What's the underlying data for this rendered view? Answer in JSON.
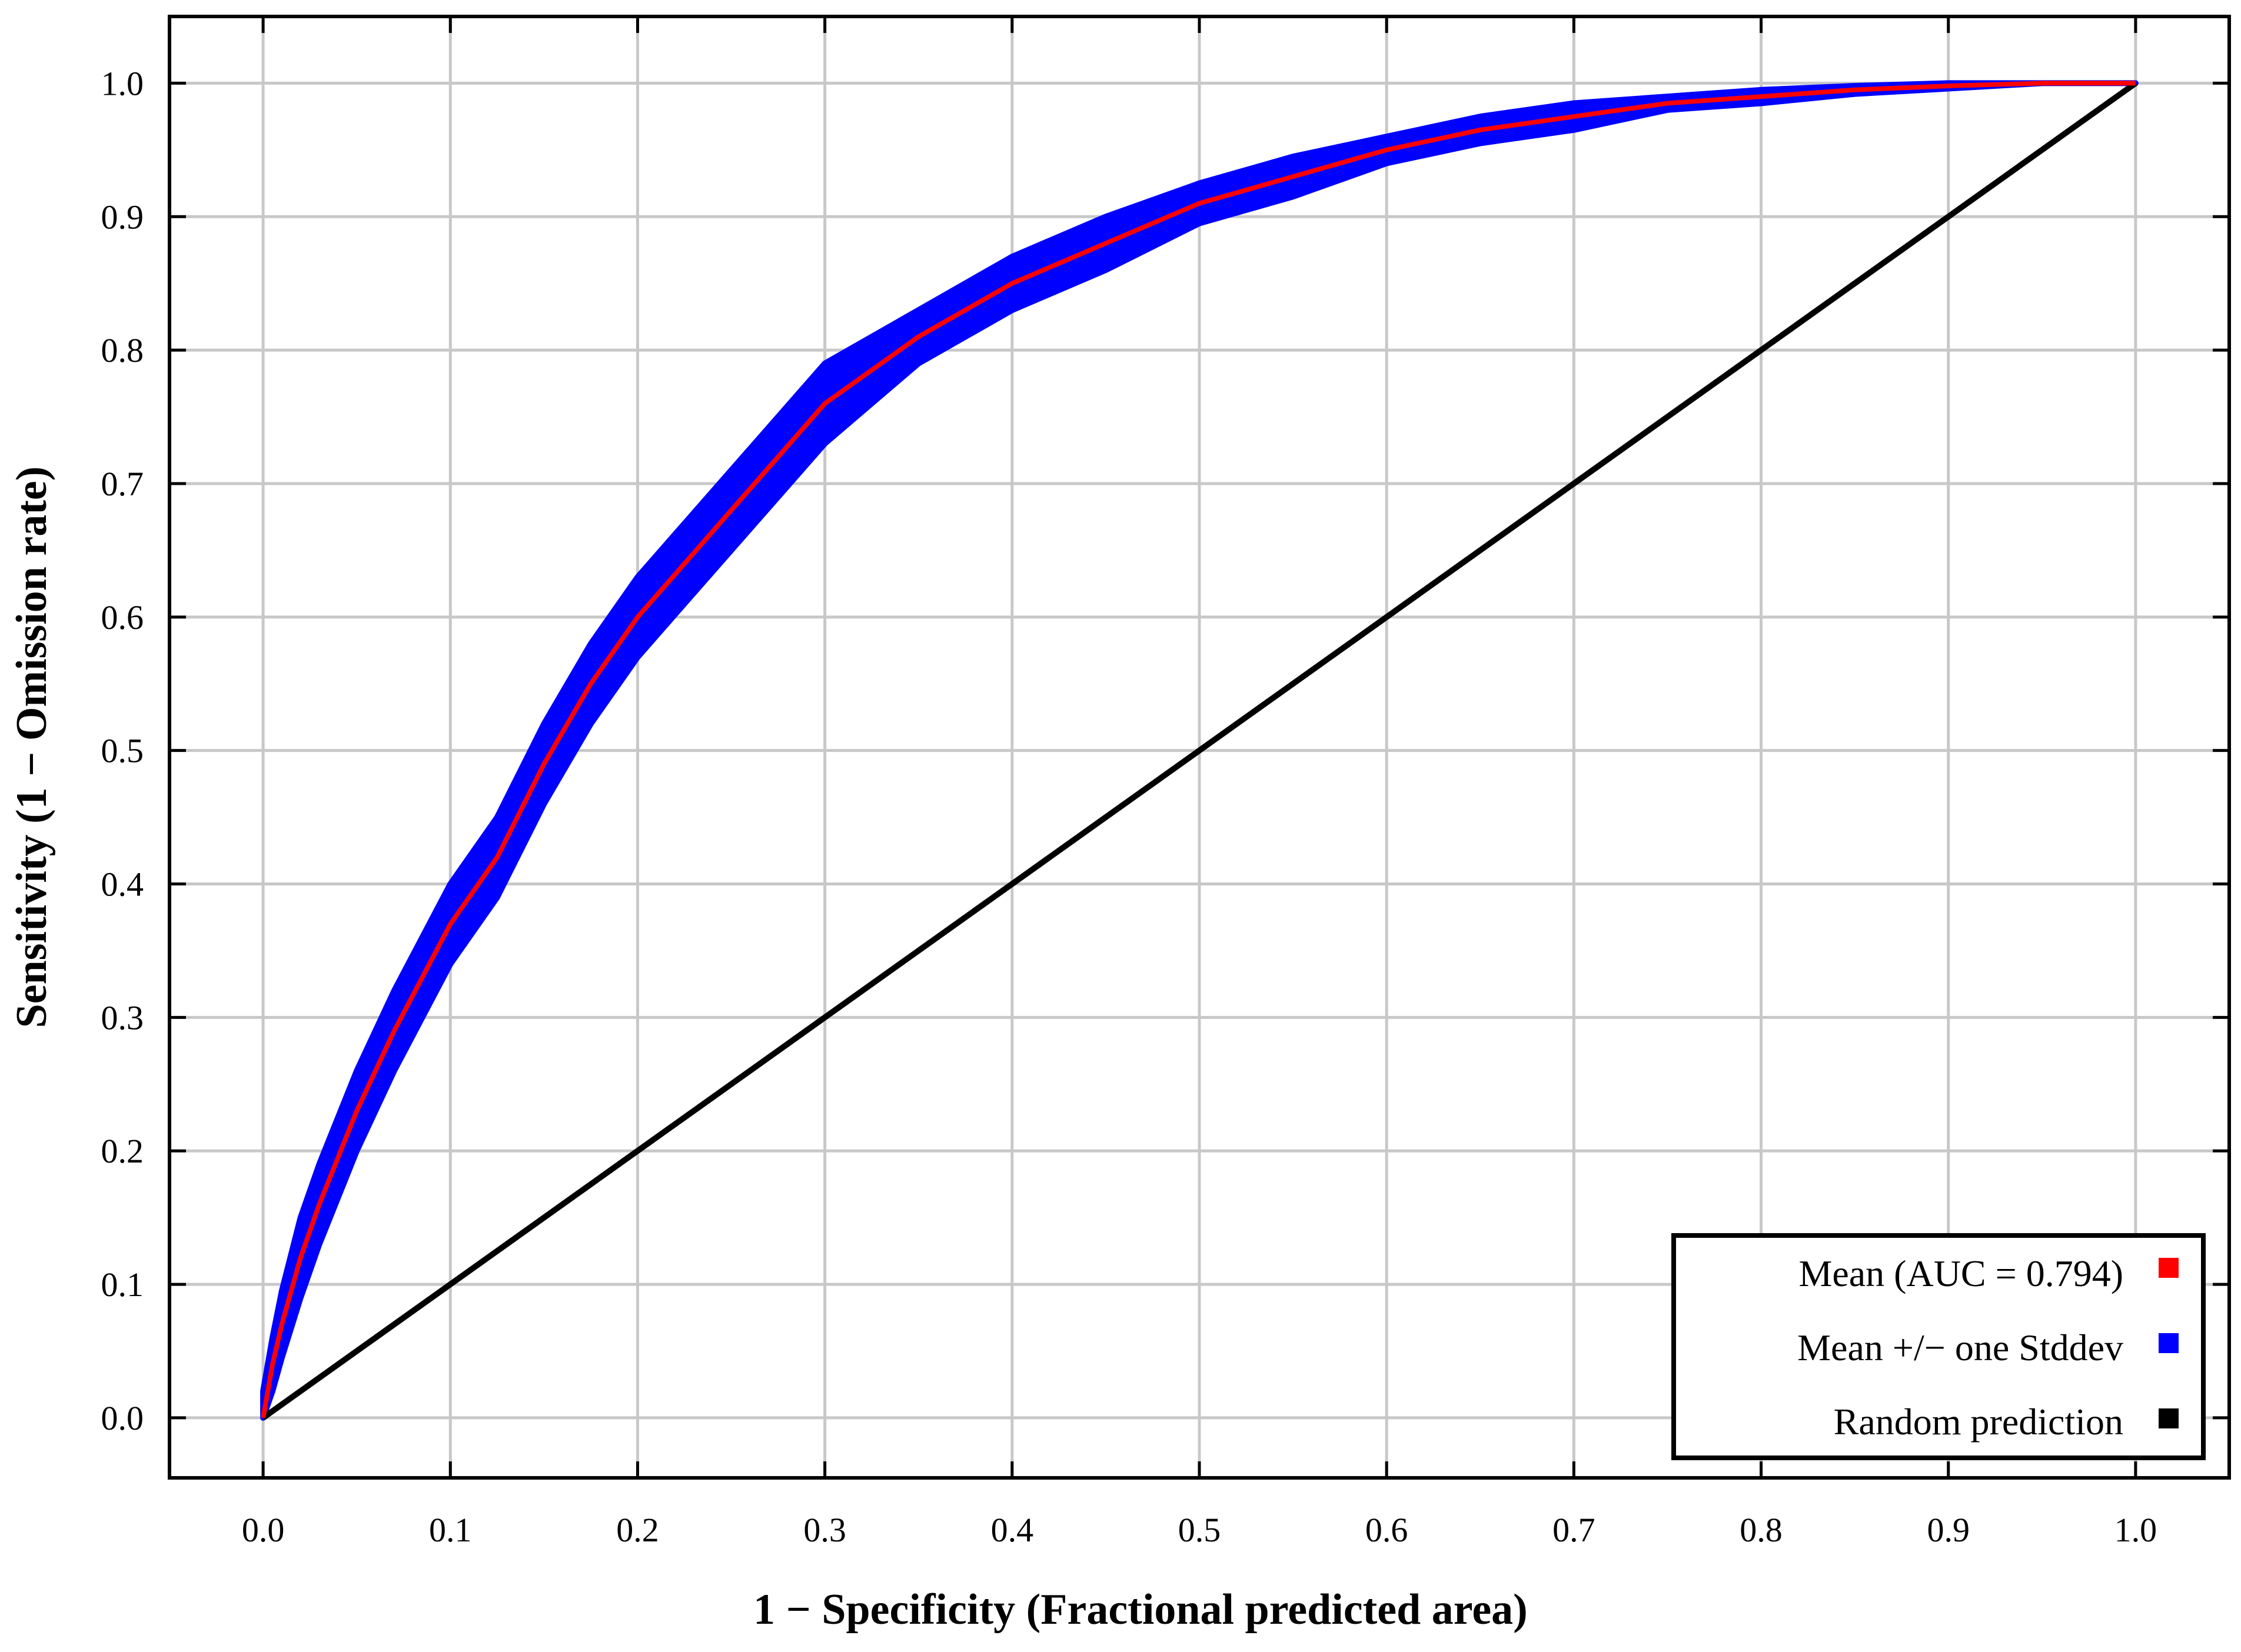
{
  "chart_data": {
    "type": "line",
    "title": "",
    "xlabel": "1 − Specificity (Fractional predicted area)",
    "ylabel": "Sensitivity (1 − Omission rate)",
    "xlim": [
      -0.05,
      1.05
    ],
    "ylim": [
      -0.045,
      1.05
    ],
    "grid": true,
    "x_ticks": [
      "0.0",
      "0.1",
      "0.2",
      "0.3",
      "0.4",
      "0.5",
      "0.6",
      "0.7",
      "0.8",
      "0.9",
      "1.0"
    ],
    "y_ticks": [
      "0.0",
      "0.1",
      "0.2",
      "0.3",
      "0.4",
      "0.5",
      "0.6",
      "0.7",
      "0.8",
      "0.9",
      "1.0"
    ],
    "legend_position": "bottom-right",
    "series": [
      {
        "name": "Mean (AUC = 0.794)",
        "color": "#ff0000",
        "x": [
          0.0,
          0.005,
          0.01,
          0.02,
          0.03,
          0.05,
          0.07,
          0.1,
          0.125,
          0.15,
          0.175,
          0.2,
          0.225,
          0.25,
          0.275,
          0.3,
          0.35,
          0.4,
          0.45,
          0.5,
          0.55,
          0.6,
          0.65,
          0.7,
          0.75,
          0.8,
          0.85,
          0.9,
          0.95,
          1.0
        ],
        "y": [
          0.0,
          0.04,
          0.07,
          0.12,
          0.16,
          0.23,
          0.29,
          0.37,
          0.42,
          0.49,
          0.55,
          0.6,
          0.64,
          0.68,
          0.72,
          0.76,
          0.81,
          0.85,
          0.88,
          0.91,
          0.93,
          0.95,
          0.965,
          0.975,
          0.985,
          0.99,
          0.995,
          0.998,
          1.0,
          1.0
        ]
      },
      {
        "name": "Mean +/− one Stddev",
        "color": "#0000ff",
        "x": [
          0.0,
          0.005,
          0.01,
          0.02,
          0.03,
          0.05,
          0.07,
          0.1,
          0.125,
          0.15,
          0.175,
          0.2,
          0.225,
          0.25,
          0.275,
          0.3,
          0.35,
          0.4,
          0.45,
          0.5,
          0.55,
          0.6,
          0.65,
          0.7,
          0.75,
          0.8,
          0.85,
          0.9,
          0.95,
          1.0
        ],
        "upper": [
          0.02,
          0.06,
          0.095,
          0.15,
          0.19,
          0.26,
          0.32,
          0.4,
          0.45,
          0.52,
          0.58,
          0.63,
          0.67,
          0.71,
          0.75,
          0.79,
          0.83,
          0.87,
          0.9,
          0.925,
          0.945,
          0.96,
          0.975,
          0.985,
          0.99,
          0.995,
          0.998,
          1.0,
          1.0,
          1.0
        ],
        "lower": [
          0.0,
          0.02,
          0.045,
          0.09,
          0.13,
          0.2,
          0.26,
          0.34,
          0.39,
          0.46,
          0.52,
          0.57,
          0.61,
          0.65,
          0.69,
          0.73,
          0.79,
          0.83,
          0.86,
          0.895,
          0.915,
          0.94,
          0.955,
          0.965,
          0.98,
          0.985,
          0.992,
          0.996,
          1.0,
          1.0
        ]
      },
      {
        "name": "Random prediction",
        "color": "#000000",
        "x": [
          0.0,
          1.0
        ],
        "y": [
          0.0,
          1.0
        ]
      }
    ]
  }
}
